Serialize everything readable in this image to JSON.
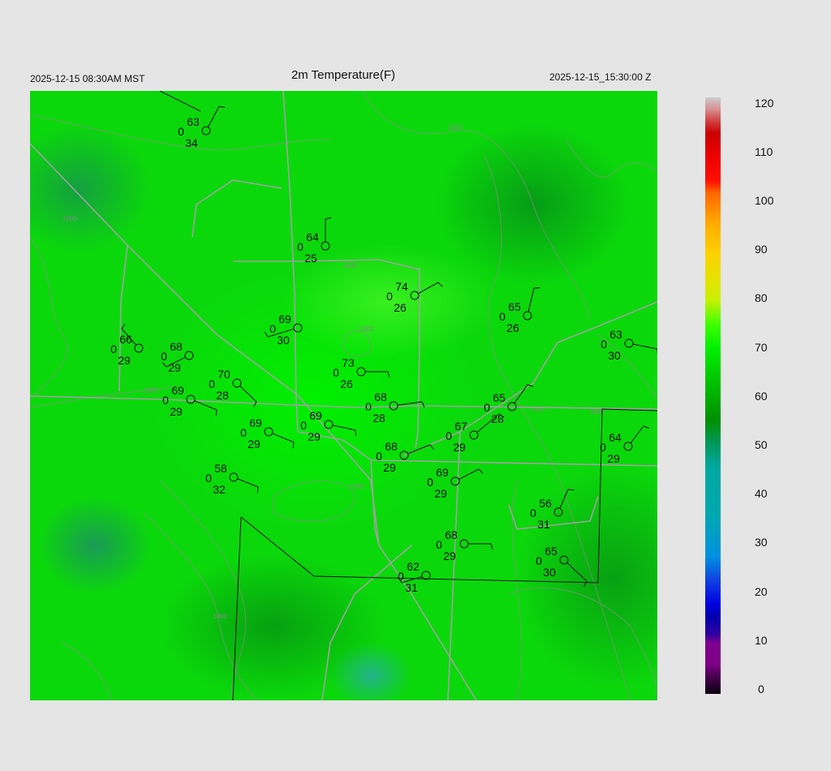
{
  "header": {
    "local_time": "2025-12-15 08:30AM MST",
    "title": "2m Temperature(F)",
    "utc_time": "2025-12-15_15:30:00 Z"
  },
  "colorbar": {
    "ticks": [
      "0",
      "10",
      "20",
      "30",
      "40",
      "50",
      "60",
      "70",
      "80",
      "90",
      "100",
      "110",
      "120"
    ],
    "range": [
      0,
      120
    ]
  },
  "contour_labels": [
    "1000",
    "1500",
    "1500",
    "2000",
    "1000",
    "1500",
    "2000",
    "1000",
    "1500"
  ],
  "stations": [
    {
      "temp": "63",
      "vis": "0",
      "dew": "34"
    },
    {
      "temp": "64",
      "vis": "0",
      "dew": "25"
    },
    {
      "temp": "74",
      "vis": "0",
      "dew": "26"
    },
    {
      "temp": "65",
      "vis": "0",
      "dew": "26"
    },
    {
      "temp": "63",
      "vis": "0",
      "dew": "30"
    },
    {
      "temp": "66",
      "vis": "0",
      "dew": "29"
    },
    {
      "temp": "68",
      "vis": "0",
      "dew": "29"
    },
    {
      "temp": "69",
      "vis": "0",
      "dew": "30"
    },
    {
      "temp": "70",
      "vis": "0",
      "dew": "28"
    },
    {
      "temp": "73",
      "vis": "0",
      "dew": "26"
    },
    {
      "temp": "69",
      "vis": "0",
      "dew": "29"
    },
    {
      "temp": "68",
      "vis": "0",
      "dew": "28"
    },
    {
      "temp": "65",
      "vis": "0",
      "dew": "28"
    },
    {
      "temp": "69",
      "vis": "0",
      "dew": "29"
    },
    {
      "temp": "69",
      "vis": "0",
      "dew": "29"
    },
    {
      "temp": "67",
      "vis": "0",
      "dew": "29"
    },
    {
      "temp": "64",
      "vis": "0",
      "dew": "29"
    },
    {
      "temp": "68",
      "vis": "0",
      "dew": "29"
    },
    {
      "temp": "58",
      "vis": "0",
      "dew": "32"
    },
    {
      "temp": "69",
      "vis": "0",
      "dew": "29"
    },
    {
      "temp": "56",
      "vis": "0",
      "dew": "31"
    },
    {
      "temp": "68",
      "vis": "0",
      "dew": "29"
    },
    {
      "temp": "65",
      "vis": "0",
      "dew": "30"
    },
    {
      "temp": "62",
      "vis": "0",
      "dew": "31"
    }
  ]
}
